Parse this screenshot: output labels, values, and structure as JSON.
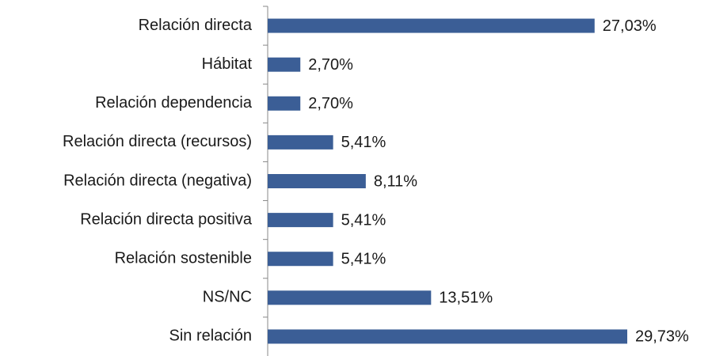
{
  "chart_data": {
    "type": "bar",
    "orientation": "horizontal",
    "categories": [
      "Relación directa",
      "Hábitat",
      "Relación dependencia",
      "Relación directa (recursos)",
      "Relación directa (negativa)",
      "Relación directa positiva",
      "Relación sostenible",
      "NS/NC",
      "Sin relación"
    ],
    "values": [
      27.03,
      2.7,
      2.7,
      5.41,
      8.11,
      5.41,
      5.41,
      13.51,
      29.73
    ],
    "value_labels": [
      "27,03%",
      "2,70%",
      "2,70%",
      "5,41%",
      "8,11%",
      "5,41%",
      "5,41%",
      "13,51%",
      "29,73%"
    ],
    "color": "#3b5e96"
  }
}
